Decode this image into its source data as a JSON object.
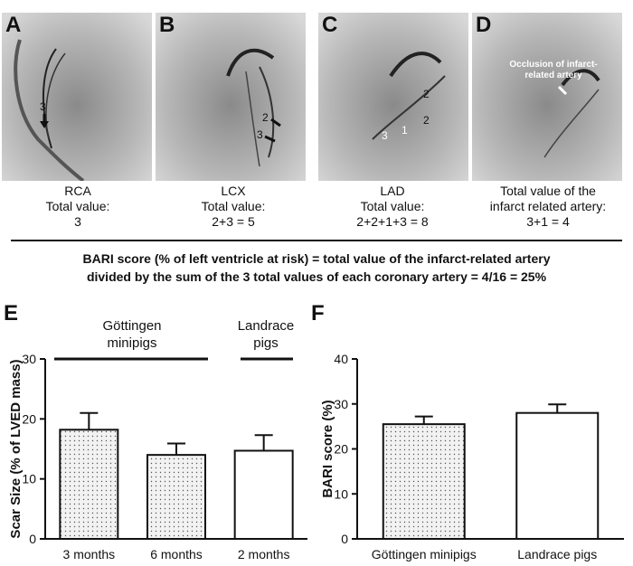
{
  "panels": [
    {
      "letter": "A",
      "caption": [
        "RCA",
        "Total value:",
        "3"
      ],
      "arrow_labels": [
        "3"
      ]
    },
    {
      "letter": "B",
      "caption": [
        "LCX",
        "Total value:",
        "2+3 = 5"
      ],
      "arrow_labels": [
        "2",
        "3"
      ]
    },
    {
      "letter": "C",
      "caption": [
        "LAD",
        "Total value:",
        "2+2+1+3 = 8"
      ],
      "arrow_labels": [
        "2",
        "2",
        "1",
        "3"
      ]
    },
    {
      "letter": "D",
      "caption": [
        "Total value of the",
        "infarct related artery:",
        "3+1 = 4"
      ],
      "arrow_labels": [
        "Occlusion of infarct-",
        "related artery"
      ]
    }
  ],
  "bari_text": {
    "line1": "BARI score (% of left ventricle at risk) = total value of the infarct-related artery",
    "line2": "divided by the sum of the 3 total values of each coronary artery = 4/16 = 25%"
  },
  "chart_data": [
    {
      "panel": "E",
      "type": "bar",
      "ylabel": "Scar Size (% of LVED mass)",
      "ylim": [
        0,
        30
      ],
      "yticks": [
        "0",
        "10",
        "20",
        "30"
      ],
      "categories": [
        "3 months",
        "6 months",
        "2 months"
      ],
      "values": [
        18.2,
        14.0,
        14.7
      ],
      "errors": [
        2.8,
        1.9,
        2.6
      ],
      "fills": [
        "dotted",
        "dotted",
        "white"
      ],
      "groups": [
        {
          "label_lines": [
            "Göttingen",
            "minipigs"
          ]
        },
        {
          "label_lines": [
            "Landrace",
            "pigs"
          ]
        }
      ]
    },
    {
      "panel": "F",
      "type": "bar",
      "ylabel": "BARI score (%)",
      "ylim": [
        0,
        40
      ],
      "yticks": [
        "0",
        "10",
        "20",
        "30",
        "40"
      ],
      "categories": [
        "Göttingen minipigs",
        "Landrace pigs"
      ],
      "values": [
        25.5,
        28.0
      ],
      "errors": [
        1.7,
        1.9
      ],
      "fills": [
        "dotted",
        "white"
      ]
    }
  ]
}
